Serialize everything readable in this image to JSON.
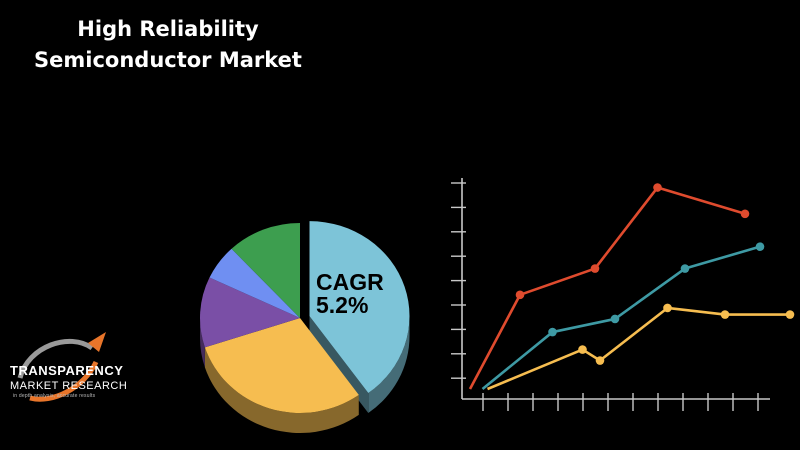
{
  "header": {
    "title_line1": "High Reliability",
    "title_line2": "Semiconductor Market"
  },
  "logo": {
    "word1": "TRANSPARENCY",
    "word2": "MARKET RESEARCH",
    "tagline": "in depth analysis, accurate results"
  },
  "chart_data": [
    {
      "type": "pie",
      "label_line1": "CAGR",
      "label_line2": "5.2%",
      "slices": [
        {
          "value": 40,
          "color": "#7dc4d8"
        },
        {
          "value": 30,
          "color": "#f6bd50"
        },
        {
          "value": 12,
          "color": "#7a4fa6"
        },
        {
          "value": 6,
          "color": "#6f8ff2"
        },
        {
          "value": 12,
          "color": "#3d9e4f"
        }
      ],
      "exploded_slice": 0
    },
    {
      "type": "line",
      "grid": false,
      "x": [
        0,
        1,
        2,
        3,
        4,
        5,
        6,
        7,
        8,
        9,
        10,
        11,
        12
      ],
      "ylim": [
        0,
        10
      ],
      "series": [
        {
          "color": "#df4b2e",
          "points": [
            [
              0,
              0
            ],
            [
              2,
              4.3
            ],
            [
              5,
              5.5
            ],
            [
              7.5,
              9.2
            ],
            [
              11,
              8.0
            ]
          ]
        },
        {
          "color": "#3e9aa4",
          "points": [
            [
              0.5,
              0
            ],
            [
              3.3,
              2.6
            ],
            [
              5.8,
              3.2
            ],
            [
              8.6,
              5.5
            ],
            [
              11.6,
              6.5
            ]
          ]
        },
        {
          "color": "#f6bd50",
          "points": [
            [
              0.7,
              0
            ],
            [
              4.5,
              1.8
            ],
            [
              5.2,
              1.3
            ],
            [
              7.9,
              3.7
            ],
            [
              10.2,
              3.4
            ],
            [
              12.8,
              3.4
            ]
          ]
        }
      ]
    }
  ]
}
